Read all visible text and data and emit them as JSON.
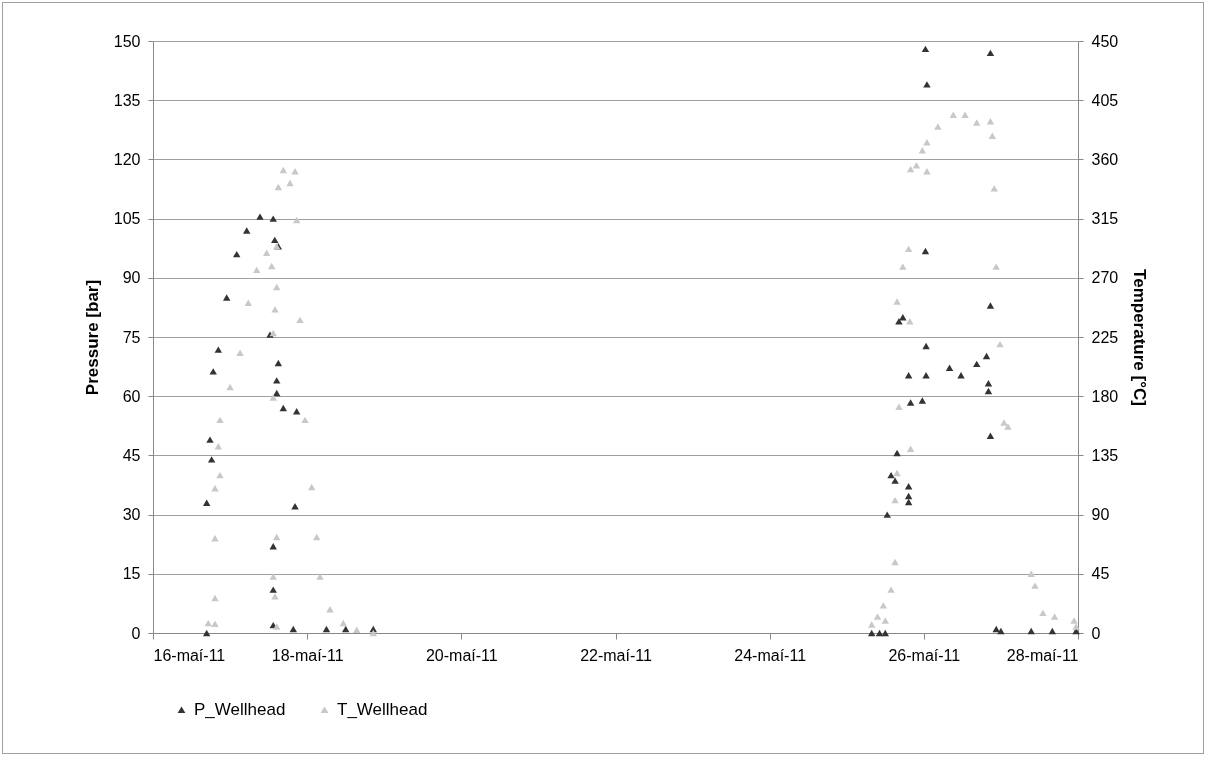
{
  "chart_data": {
    "type": "scatter",
    "ylabel": "Pressure [bar]",
    "y2label": "Temperature [°C]",
    "xlim": [
      "--05-16",
      "--05-28"
    ],
    "xticks": [
      {
        "value": "--05-16",
        "label": "16-maí-11"
      },
      {
        "value": "--05-18",
        "label": "18-maí-11"
      },
      {
        "value": "--05-20",
        "label": "20-maí-11"
      },
      {
        "value": "--05-22",
        "label": "22-maí-11"
      },
      {
        "value": "--05-24",
        "label": "24-maí-11"
      },
      {
        "value": "--05-26",
        "label": "26-maí-11"
      },
      {
        "value": "--05-28",
        "label": "28-maí-11"
      }
    ],
    "ylim": [
      0,
      150
    ],
    "yticks": [
      0,
      15,
      30,
      45,
      60,
      75,
      90,
      105,
      120,
      135,
      150
    ],
    "y2lim": [
      0,
      450
    ],
    "y2ticks": [
      0,
      45,
      90,
      135,
      180,
      225,
      270,
      315,
      360,
      405,
      450
    ],
    "grid": "y",
    "legend": "bottom",
    "marker": "triangle",
    "series": [
      {
        "name": "P_Wellhead",
        "color": "#333333",
        "axis": "y",
        "x": [
          "--05-16T16:43",
          "--05-16T16:43",
          "--05-16T17:45",
          "--05-16T18:15",
          "--05-16T18:45",
          "--05-16T20:20",
          "--05-16T22:57",
          "--05-17T02:04",
          "--05-17T05:11",
          "--05-17T09:19",
          "--05-17T13:26",
          "--05-17T13:55",
          "--05-17T15:01",
          "--05-17T12:26",
          "--05-17T15:01",
          "--05-17T14:31",
          "--05-17T14:31",
          "--05-17T16:34",
          "--05-17T20:44",
          "--05-17T20:13",
          "--05-17T13:26",
          "--05-17T13:26",
          "--05-17T13:26",
          "--05-17T19:41",
          "--05-18T06:00",
          "--05-18T12:00",
          "--05-18T20:35",
          "--05-25T07:46",
          "--05-25T10:12",
          "--05-25T12:00",
          "--05-25T12:36",
          "--05-25T15:03",
          "--05-25T15:40",
          "--05-25T13:48",
          "--05-25T16:15",
          "--05-25T17:28",
          "--05-25T19:16",
          "--05-25T19:16",
          "--05-25T19:16",
          "--05-25T19:16",
          "--05-25T19:53",
          "--05-25T23:32",
          "--05-26T00:30",
          "--05-26T00:58",
          "--05-26T00:30",
          "--05-26T00:42",
          "--05-26T00:42",
          "--05-26T08:00",
          "--05-26T11:35",
          "--05-26T16:28",
          "--05-26T19:31",
          "--05-26T20:07",
          "--05-26T20:07",
          "--05-26T20:44",
          "--05-26T20:44",
          "--05-26T20:44",
          "--05-26T22:32",
          "--05-27T00:00",
          "--05-27T09:26",
          "--05-27T16:00",
          "--05-27T23:24"
        ],
        "values": [
          0,
          33,
          49,
          44,
          66.3,
          71.8,
          85,
          96,
          102,
          105.5,
          105,
          99.6,
          98,
          75.6,
          68.4,
          64,
          60.8,
          57,
          56.2,
          32.1,
          22,
          11,
          2,
          1,
          1,
          1,
          1,
          0,
          0,
          0,
          30,
          38.6,
          45.6,
          40,
          79,
          80,
          65.3,
          37.2,
          34.7,
          33.2,
          58.4,
          58.9,
          148,
          139,
          96.8,
          72.7,
          65.3,
          67.2,
          65.3,
          68.2,
          70.2,
          63.3,
          61.3,
          147,
          83,
          50,
          1,
          0.5,
          0.5,
          0.5,
          0.5
        ]
      },
      {
        "name": "T_Wellhead",
        "color": "#c8c8c8",
        "axis": "y2",
        "x": [
          "--05-16T17:12",
          "--05-16T19:18",
          "--05-16T19:18",
          "--05-16T19:18",
          "--05-16T19:18",
          "--05-16T20:51",
          "--05-16T20:20",
          "--05-16T20:51",
          "--05-17T00:00",
          "--05-17T03:06",
          "--05-17T05:40",
          "--05-17T08:17",
          "--05-17T11:24",
          "--05-17T14:31",
          "--05-17T14:31",
          "--05-17T13:59",
          "--05-17T13:26",
          "--05-17T12:57",
          "--05-17T13:26",
          "--05-17T14:31",
          "--05-17T13:26",
          "--05-17T13:59",
          "--05-17T14:31",
          "--05-17T15:01",
          "--05-17T16:34",
          "--05-17T18:39",
          "--05-17T20:13",
          "--05-17T20:44",
          "--05-17T21:46",
          "--05-17T23:20",
          "--05-18T01:25",
          "--05-18T02:58",
          "--05-18T04:00",
          "--05-18T07:06",
          "--05-18T11:15",
          "--05-18T15:26",
          "--05-18T20:35",
          "--05-25T07:46",
          "--05-25T09:35",
          "--05-25T12:00",
          "--05-25T11:24",
          "--05-25T13:48",
          "--05-25T15:03",
          "--05-25T15:03",
          "--05-25T15:40",
          "--05-25T16:15",
          "--05-25T15:40",
          "--05-25T17:28",
          "--05-25T19:16",
          "--05-25T19:38",
          "--05-25T19:53",
          "--05-25T19:53",
          "--05-25T21:42",
          "--05-25T23:32",
          "--05-26T00:58",
          "--05-26T00:58",
          "--05-26T04:22",
          "--05-26T09:10",
          "--05-26T12:50",
          "--05-26T16:28",
          "--05-26T20:44",
          "--05-26T21:20",
          "--05-26T21:55",
          "--05-26T22:32",
          "--05-26T23:43",
          "--05-27T00:58",
          "--05-27T02:11",
          "--05-27T09:26",
          "--05-27T10:37",
          "--05-27T13:05",
          "--05-27T16:42",
          "--05-27T22:47",
          "--05-27T23:24"
        ],
        "values": [
          7.6,
          7,
          26.6,
          72,
          110,
          120,
          142,
          162,
          187,
          213,
          251,
          276,
          289,
          294,
          263,
          246,
          228,
          279,
          179,
          73,
          43,
          28,
          5,
          339,
          352,
          342,
          351,
          314,
          238,
          162,
          111,
          73,
          43,
          18,
          7.6,
          2.5,
          0,
          6.5,
          12.5,
          9.5,
          21,
          33,
          54,
          101,
          121.6,
          172,
          252,
          278.5,
          292,
          237,
          140,
          352.6,
          355.6,
          367,
          373,
          351,
          385,
          394,
          394,
          388,
          389,
          378,
          338,
          278.5,
          219.6,
          160,
          157,
          45,
          36,
          15.3,
          12.5,
          9.5,
          5
        ]
      }
    ]
  }
}
